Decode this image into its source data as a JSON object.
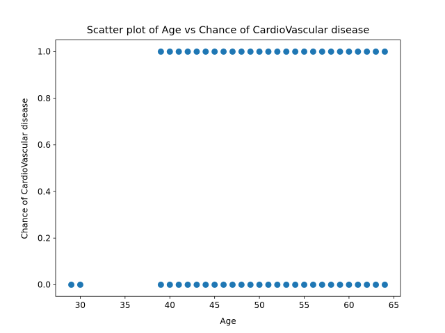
{
  "chart_data": {
    "type": "scatter",
    "title": "Scatter plot of Age vs Chance of CardioVascular disease",
    "xlabel": "Age",
    "ylabel": "Chance of CardioVascular disease",
    "xlim": [
      27.25,
      65.75
    ],
    "ylim": [
      -0.05,
      1.05
    ],
    "xticks": [
      30,
      35,
      40,
      45,
      50,
      55,
      60,
      65
    ],
    "yticks": [
      0.0,
      0.2,
      0.4,
      0.6,
      0.8,
      1.0
    ],
    "xtick_labels": [
      "30",
      "35",
      "40",
      "45",
      "50",
      "55",
      "60",
      "65"
    ],
    "ytick_labels": [
      "0.0",
      "0.2",
      "0.4",
      "0.6",
      "0.8",
      "1.0"
    ],
    "grid": false,
    "marker_color": "#1f77b4",
    "series": [
      {
        "points": [
          {
            "x": 29,
            "y": 0
          },
          {
            "x": 30,
            "y": 0
          },
          {
            "x": 39,
            "y": 0
          },
          {
            "x": 40,
            "y": 0
          },
          {
            "x": 41,
            "y": 0
          },
          {
            "x": 42,
            "y": 0
          },
          {
            "x": 43,
            "y": 0
          },
          {
            "x": 44,
            "y": 0
          },
          {
            "x": 45,
            "y": 0
          },
          {
            "x": 46,
            "y": 0
          },
          {
            "x": 47,
            "y": 0
          },
          {
            "x": 48,
            "y": 0
          },
          {
            "x": 49,
            "y": 0
          },
          {
            "x": 50,
            "y": 0
          },
          {
            "x": 51,
            "y": 0
          },
          {
            "x": 52,
            "y": 0
          },
          {
            "x": 53,
            "y": 0
          },
          {
            "x": 54,
            "y": 0
          },
          {
            "x": 55,
            "y": 0
          },
          {
            "x": 56,
            "y": 0
          },
          {
            "x": 57,
            "y": 0
          },
          {
            "x": 58,
            "y": 0
          },
          {
            "x": 59,
            "y": 0
          },
          {
            "x": 60,
            "y": 0
          },
          {
            "x": 61,
            "y": 0
          },
          {
            "x": 62,
            "y": 0
          },
          {
            "x": 63,
            "y": 0
          },
          {
            "x": 64,
            "y": 0
          },
          {
            "x": 39,
            "y": 1
          },
          {
            "x": 40,
            "y": 1
          },
          {
            "x": 41,
            "y": 1
          },
          {
            "x": 42,
            "y": 1
          },
          {
            "x": 43,
            "y": 1
          },
          {
            "x": 44,
            "y": 1
          },
          {
            "x": 45,
            "y": 1
          },
          {
            "x": 46,
            "y": 1
          },
          {
            "x": 47,
            "y": 1
          },
          {
            "x": 48,
            "y": 1
          },
          {
            "x": 49,
            "y": 1
          },
          {
            "x": 50,
            "y": 1
          },
          {
            "x": 51,
            "y": 1
          },
          {
            "x": 52,
            "y": 1
          },
          {
            "x": 53,
            "y": 1
          },
          {
            "x": 54,
            "y": 1
          },
          {
            "x": 55,
            "y": 1
          },
          {
            "x": 56,
            "y": 1
          },
          {
            "x": 57,
            "y": 1
          },
          {
            "x": 58,
            "y": 1
          },
          {
            "x": 59,
            "y": 1
          },
          {
            "x": 60,
            "y": 1
          },
          {
            "x": 61,
            "y": 1
          },
          {
            "x": 62,
            "y": 1
          },
          {
            "x": 63,
            "y": 1
          },
          {
            "x": 64,
            "y": 1
          }
        ]
      }
    ]
  }
}
